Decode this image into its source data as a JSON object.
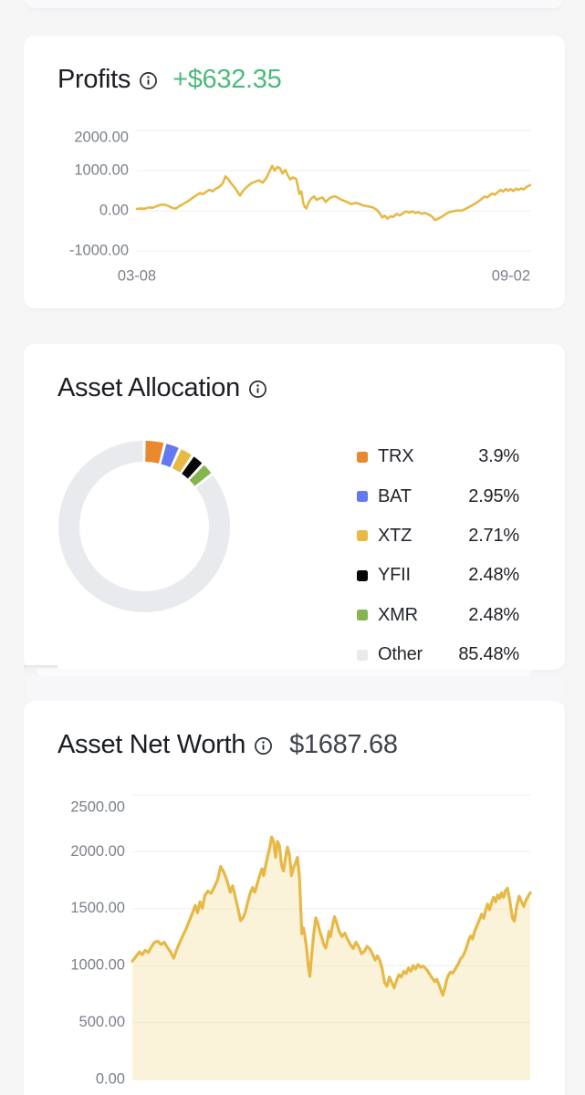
{
  "colors": {
    "background": "#f5f5f6",
    "card": "#ffffff",
    "title_text": "#1b1e24",
    "profit_green": "#4aba7d",
    "networth_gray": "#3f444c",
    "chart_gold": "#e7b845",
    "gridline": "#ededf0",
    "tick_text": "#7b8089",
    "donut_track": "#e9eaee"
  },
  "cards": {
    "profits": {
      "title": "Profits",
      "value": "+$632.35"
    },
    "allocation": {
      "title": "Asset Allocation"
    },
    "networth": {
      "title": "Asset Net Worth",
      "value": "$1687.68"
    }
  },
  "chart_data": [
    {
      "id": "profits-chart",
      "type": "line",
      "title": "Profits",
      "ylabel": "",
      "xlabel": "",
      "ylim": [
        -1000,
        2000
      ],
      "grid": true,
      "line_color": "#e7b845",
      "grid_color": "#ededf0",
      "tick_color": "#7b8089",
      "y_ticks": [
        {
          "label": "2000.00",
          "value": 2000
        },
        {
          "label": "1000.00",
          "value": 1000
        },
        {
          "label": "0.00",
          "value": 0
        },
        {
          "label": "-1000.00",
          "value": -1000
        }
      ],
      "x_ticks": [
        {
          "label": "03-08",
          "pos": 0,
          "anchor": "middle"
        },
        {
          "label": "09-02",
          "pos": 1,
          "anchor": "end"
        }
      ],
      "points": [
        [
          0,
          45
        ],
        [
          0.01,
          60
        ],
        [
          0.02,
          50
        ],
        [
          0.03,
          85
        ],
        [
          0.04,
          75
        ],
        [
          0.05,
          115
        ],
        [
          0.06,
          150
        ],
        [
          0.07,
          155
        ],
        [
          0.08,
          120
        ],
        [
          0.09,
          70
        ],
        [
          0.1,
          60
        ],
        [
          0.11,
          130
        ],
        [
          0.12,
          180
        ],
        [
          0.13,
          240
        ],
        [
          0.14,
          310
        ],
        [
          0.15,
          380
        ],
        [
          0.16,
          440
        ],
        [
          0.168,
          415
        ],
        [
          0.176,
          470
        ],
        [
          0.184,
          525
        ],
        [
          0.192,
          485
        ],
        [
          0.2,
          545
        ],
        [
          0.21,
          600
        ],
        [
          0.218,
          680
        ],
        [
          0.225,
          860
        ],
        [
          0.232,
          790
        ],
        [
          0.24,
          680
        ],
        [
          0.25,
          560
        ],
        [
          0.256,
          470
        ],
        [
          0.262,
          380
        ],
        [
          0.27,
          500
        ],
        [
          0.28,
          600
        ],
        [
          0.29,
          680
        ],
        [
          0.3,
          720
        ],
        [
          0.31,
          760
        ],
        [
          0.32,
          700
        ],
        [
          0.33,
          830
        ],
        [
          0.336,
          960
        ],
        [
          0.344,
          1120
        ],
        [
          0.35,
          1000
        ],
        [
          0.357,
          1090
        ],
        [
          0.364,
          1060
        ],
        [
          0.37,
          930
        ],
        [
          0.377,
          1020
        ],
        [
          0.385,
          860
        ],
        [
          0.39,
          780
        ],
        [
          0.396,
          830
        ],
        [
          0.405,
          790
        ],
        [
          0.413,
          420
        ],
        [
          0.418,
          480
        ],
        [
          0.423,
          200
        ],
        [
          0.427,
          90
        ],
        [
          0.431,
          60
        ],
        [
          0.436,
          200
        ],
        [
          0.443,
          300
        ],
        [
          0.45,
          360
        ],
        [
          0.457,
          270
        ],
        [
          0.465,
          310
        ],
        [
          0.472,
          330
        ],
        [
          0.48,
          220
        ],
        [
          0.487,
          290
        ],
        [
          0.495,
          340
        ],
        [
          0.505,
          360
        ],
        [
          0.515,
          300
        ],
        [
          0.525,
          255
        ],
        [
          0.535,
          215
        ],
        [
          0.545,
          165
        ],
        [
          0.555,
          195
        ],
        [
          0.565,
          175
        ],
        [
          0.575,
          135
        ],
        [
          0.585,
          115
        ],
        [
          0.6,
          85
        ],
        [
          0.61,
          20
        ],
        [
          0.617,
          -60
        ],
        [
          0.624,
          -165
        ],
        [
          0.63,
          -120
        ],
        [
          0.637,
          -195
        ],
        [
          0.644,
          -140
        ],
        [
          0.652,
          -150
        ],
        [
          0.66,
          -75
        ],
        [
          0.668,
          -115
        ],
        [
          0.676,
          -65
        ],
        [
          0.684,
          -15
        ],
        [
          0.692,
          -45
        ],
        [
          0.7,
          -15
        ],
        [
          0.708,
          -55
        ],
        [
          0.716,
          -35
        ],
        [
          0.724,
          -75
        ],
        [
          0.732,
          -55
        ],
        [
          0.74,
          -85
        ],
        [
          0.746,
          -115
        ],
        [
          0.752,
          -160
        ],
        [
          0.758,
          -235
        ],
        [
          0.764,
          -205
        ],
        [
          0.77,
          -175
        ],
        [
          0.778,
          -130
        ],
        [
          0.786,
          -75
        ],
        [
          0.794,
          -35
        ],
        [
          0.805,
          -10
        ],
        [
          0.815,
          10
        ],
        [
          0.825,
          0
        ],
        [
          0.835,
          45
        ],
        [
          0.845,
          95
        ],
        [
          0.855,
          150
        ],
        [
          0.865,
          210
        ],
        [
          0.872,
          260
        ],
        [
          0.878,
          310
        ],
        [
          0.885,
          360
        ],
        [
          0.89,
          330
        ],
        [
          0.898,
          395
        ],
        [
          0.904,
          430
        ],
        [
          0.91,
          400
        ],
        [
          0.918,
          470
        ],
        [
          0.925,
          520
        ],
        [
          0.931,
          480
        ],
        [
          0.938,
          545
        ],
        [
          0.944,
          500
        ],
        [
          0.951,
          540
        ],
        [
          0.957,
          490
        ],
        [
          0.964,
          555
        ],
        [
          0.97,
          520
        ],
        [
          0.977,
          560
        ],
        [
          0.983,
          530
        ],
        [
          0.99,
          590
        ],
        [
          1,
          640
        ]
      ]
    },
    {
      "id": "allocation-donut",
      "type": "pie",
      "title": "Asset Allocation",
      "slices": [
        {
          "symbol": "TRX",
          "percent": "3.9%",
          "value": 3.9,
          "color": "#e9882c"
        },
        {
          "symbol": "BAT",
          "percent": "2.95%",
          "value": 2.95,
          "color": "#6478ef"
        },
        {
          "symbol": "XTZ",
          "percent": "2.71%",
          "value": 2.71,
          "color": "#e7ba43"
        },
        {
          "symbol": "YFII",
          "percent": "2.48%",
          "value": 2.48,
          "color": "#05070a"
        },
        {
          "symbol": "XMR",
          "percent": "2.48%",
          "value": 2.48,
          "color": "#84b54f"
        },
        {
          "symbol": "Other",
          "percent": "85.48%",
          "value": 85.48,
          "color": "#e9eaee"
        }
      ]
    },
    {
      "id": "networth-chart",
      "type": "area",
      "title": "Asset Net Worth",
      "ylabel": "",
      "xlabel": "",
      "ylim": [
        0,
        2500
      ],
      "grid": true,
      "line_color": "#e7b845",
      "fill_color": "rgba(242,224,160,0.40)",
      "fill_base": 0,
      "grid_color": "#ededf0",
      "tick_color": "#7b8089",
      "y_ticks": [
        {
          "label": "2500.00",
          "value": 2500
        },
        {
          "label": "2000.00",
          "value": 2000
        },
        {
          "label": "1500.00",
          "value": 1500
        },
        {
          "label": "1000.00",
          "value": 1000
        },
        {
          "label": "500.00",
          "value": 500
        },
        {
          "label": "0.00",
          "value": 0
        }
      ],
      "x_ticks": [],
      "points": [
        [
          0,
          1040
        ],
        [
          0.01,
          1085
        ],
        [
          0.018,
          1120
        ],
        [
          0.025,
          1095
        ],
        [
          0.032,
          1135
        ],
        [
          0.04,
          1115
        ],
        [
          0.048,
          1165
        ],
        [
          0.056,
          1205
        ],
        [
          0.064,
          1215
        ],
        [
          0.072,
          1185
        ],
        [
          0.08,
          1205
        ],
        [
          0.088,
          1160
        ],
        [
          0.096,
          1120
        ],
        [
          0.104,
          1065
        ],
        [
          0.112,
          1145
        ],
        [
          0.12,
          1210
        ],
        [
          0.128,
          1270
        ],
        [
          0.136,
          1330
        ],
        [
          0.144,
          1400
        ],
        [
          0.152,
          1470
        ],
        [
          0.158,
          1530
        ],
        [
          0.164,
          1465
        ],
        [
          0.17,
          1560
        ],
        [
          0.176,
          1505
        ],
        [
          0.182,
          1615
        ],
        [
          0.19,
          1655
        ],
        [
          0.198,
          1635
        ],
        [
          0.206,
          1690
        ],
        [
          0.214,
          1750
        ],
        [
          0.222,
          1870
        ],
        [
          0.23,
          1820
        ],
        [
          0.238,
          1745
        ],
        [
          0.246,
          1645
        ],
        [
          0.252,
          1700
        ],
        [
          0.258,
          1615
        ],
        [
          0.265,
          1510
        ],
        [
          0.272,
          1395
        ],
        [
          0.278,
          1420
        ],
        [
          0.284,
          1470
        ],
        [
          0.29,
          1555
        ],
        [
          0.296,
          1635
        ],
        [
          0.302,
          1685
        ],
        [
          0.308,
          1645
        ],
        [
          0.314,
          1720
        ],
        [
          0.32,
          1790
        ],
        [
          0.326,
          1850
        ],
        [
          0.33,
          1790
        ],
        [
          0.335,
          1880
        ],
        [
          0.34,
          1960
        ],
        [
          0.345,
          2030
        ],
        [
          0.35,
          2130
        ],
        [
          0.355,
          2090
        ],
        [
          0.36,
          1950
        ],
        [
          0.365,
          2090
        ],
        [
          0.37,
          2050
        ],
        [
          0.375,
          1880
        ],
        [
          0.38,
          1830
        ],
        [
          0.385,
          1950
        ],
        [
          0.39,
          2040
        ],
        [
          0.395,
          1970
        ],
        [
          0.4,
          1790
        ],
        [
          0.405,
          1860
        ],
        [
          0.41,
          1900
        ],
        [
          0.415,
          1950
        ],
        [
          0.42,
          1780
        ],
        [
          0.426,
          1280
        ],
        [
          0.43,
          1330
        ],
        [
          0.434,
          1255
        ],
        [
          0.438,
          1150
        ],
        [
          0.442,
          1000
        ],
        [
          0.446,
          905
        ],
        [
          0.451,
          1100
        ],
        [
          0.456,
          1280
        ],
        [
          0.461,
          1420
        ],
        [
          0.466,
          1375
        ],
        [
          0.471,
          1300
        ],
        [
          0.476,
          1250
        ],
        [
          0.481,
          1185
        ],
        [
          0.486,
          1155
        ],
        [
          0.49,
          1210
        ],
        [
          0.494,
          1300
        ],
        [
          0.498,
          1255
        ],
        [
          0.503,
          1350
        ],
        [
          0.508,
          1430
        ],
        [
          0.513,
          1380
        ],
        [
          0.52,
          1300
        ],
        [
          0.527,
          1255
        ],
        [
          0.534,
          1285
        ],
        [
          0.541,
          1230
        ],
        [
          0.548,
          1185
        ],
        [
          0.555,
          1150
        ],
        [
          0.562,
          1205
        ],
        [
          0.569,
          1165
        ],
        [
          0.576,
          1105
        ],
        [
          0.583,
          1125
        ],
        [
          0.59,
          1170
        ],
        [
          0.597,
          1145
        ],
        [
          0.604,
          1100
        ],
        [
          0.61,
          1050
        ],
        [
          0.616,
          1085
        ],
        [
          0.622,
          1045
        ],
        [
          0.628,
          970
        ],
        [
          0.634,
          850
        ],
        [
          0.64,
          820
        ],
        [
          0.646,
          900
        ],
        [
          0.652,
          850
        ],
        [
          0.658,
          805
        ],
        [
          0.664,
          870
        ],
        [
          0.67,
          920
        ],
        [
          0.676,
          900
        ],
        [
          0.682,
          950
        ],
        [
          0.688,
          930
        ],
        [
          0.694,
          980
        ],
        [
          0.7,
          950
        ],
        [
          0.706,
          1000
        ],
        [
          0.712,
          970
        ],
        [
          0.718,
          1010
        ],
        [
          0.724,
          985
        ],
        [
          0.73,
          995
        ],
        [
          0.736,
          980
        ],
        [
          0.742,
          955
        ],
        [
          0.748,
          920
        ],
        [
          0.754,
          890
        ],
        [
          0.76,
          860
        ],
        [
          0.765,
          880
        ],
        [
          0.77,
          840
        ],
        [
          0.775,
          790
        ],
        [
          0.78,
          740
        ],
        [
          0.785,
          800
        ],
        [
          0.79,
          875
        ],
        [
          0.795,
          920
        ],
        [
          0.8,
          945
        ],
        [
          0.805,
          935
        ],
        [
          0.81,
          960
        ],
        [
          0.815,
          990
        ],
        [
          0.82,
          1020
        ],
        [
          0.825,
          1060
        ],
        [
          0.83,
          1080
        ],
        [
          0.835,
          1115
        ],
        [
          0.84,
          1160
        ],
        [
          0.845,
          1220
        ],
        [
          0.85,
          1260
        ],
        [
          0.855,
          1235
        ],
        [
          0.86,
          1300
        ],
        [
          0.866,
          1350
        ],
        [
          0.872,
          1400
        ],
        [
          0.878,
          1450
        ],
        [
          0.883,
          1415
        ],
        [
          0.888,
          1490
        ],
        [
          0.893,
          1540
        ],
        [
          0.898,
          1490
        ],
        [
          0.903,
          1555
        ],
        [
          0.908,
          1600
        ],
        [
          0.913,
          1560
        ],
        [
          0.918,
          1620
        ],
        [
          0.923,
          1590
        ],
        [
          0.928,
          1640
        ],
        [
          0.933,
          1600
        ],
        [
          0.938,
          1660
        ],
        [
          0.943,
          1680
        ],
        [
          0.949,
          1560
        ],
        [
          0.955,
          1420
        ],
        [
          0.96,
          1390
        ],
        [
          0.966,
          1520
        ],
        [
          0.972,
          1610
        ],
        [
          0.978,
          1560
        ],
        [
          0.984,
          1520
        ],
        [
          0.99,
          1580
        ],
        [
          1,
          1640
        ]
      ]
    }
  ]
}
